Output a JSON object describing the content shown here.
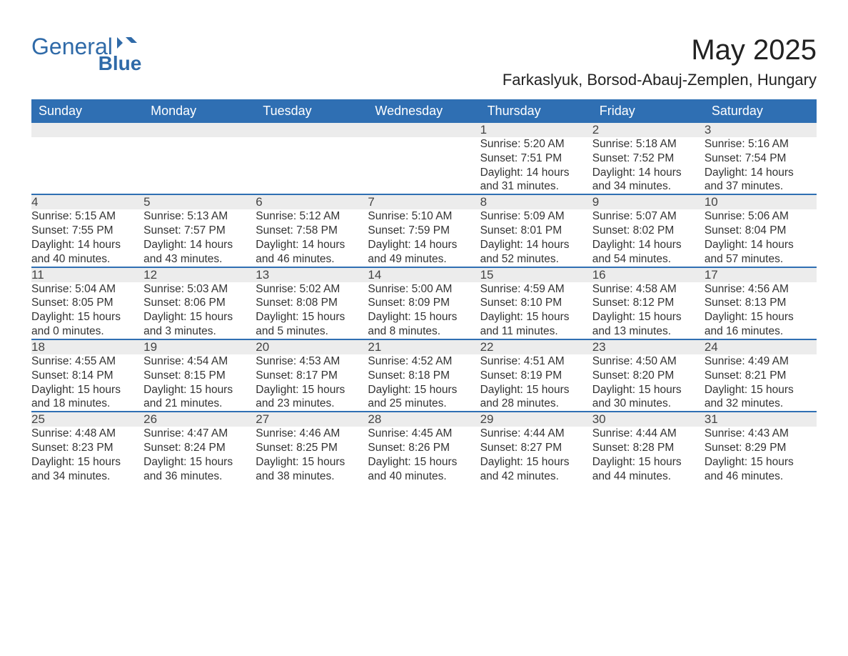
{
  "brand": {
    "word1": "General",
    "word2": "Blue"
  },
  "title": "May 2025",
  "subtitle": "Farkaslyuk, Borsod-Abauj-Zemplen, Hungary",
  "colors": {
    "header_bg": "#2f6fb3",
    "header_text": "#ffffff",
    "daynum_bg": "#ececec",
    "accent_line": "#2f6fb3",
    "body_text": "#333333",
    "brand": "#2f6aa8",
    "page_bg": "#ffffff"
  },
  "font_sizes": {
    "title": 40,
    "subtitle": 22,
    "header": 18,
    "daynum": 17,
    "detail": 15.5
  },
  "weekdays": [
    "Sunday",
    "Monday",
    "Tuesday",
    "Wednesday",
    "Thursday",
    "Friday",
    "Saturday"
  ],
  "weeks": [
    [
      null,
      null,
      null,
      null,
      {
        "n": "1",
        "sr": "5:20 AM",
        "ss": "7:51 PM",
        "dh": "14",
        "dm": "31"
      },
      {
        "n": "2",
        "sr": "5:18 AM",
        "ss": "7:52 PM",
        "dh": "14",
        "dm": "34"
      },
      {
        "n": "3",
        "sr": "5:16 AM",
        "ss": "7:54 PM",
        "dh": "14",
        "dm": "37"
      }
    ],
    [
      {
        "n": "4",
        "sr": "5:15 AM",
        "ss": "7:55 PM",
        "dh": "14",
        "dm": "40"
      },
      {
        "n": "5",
        "sr": "5:13 AM",
        "ss": "7:57 PM",
        "dh": "14",
        "dm": "43"
      },
      {
        "n": "6",
        "sr": "5:12 AM",
        "ss": "7:58 PM",
        "dh": "14",
        "dm": "46"
      },
      {
        "n": "7",
        "sr": "5:10 AM",
        "ss": "7:59 PM",
        "dh": "14",
        "dm": "49"
      },
      {
        "n": "8",
        "sr": "5:09 AM",
        "ss": "8:01 PM",
        "dh": "14",
        "dm": "52"
      },
      {
        "n": "9",
        "sr": "5:07 AM",
        "ss": "8:02 PM",
        "dh": "14",
        "dm": "54"
      },
      {
        "n": "10",
        "sr": "5:06 AM",
        "ss": "8:04 PM",
        "dh": "14",
        "dm": "57"
      }
    ],
    [
      {
        "n": "11",
        "sr": "5:04 AM",
        "ss": "8:05 PM",
        "dh": "15",
        "dm": "0"
      },
      {
        "n": "12",
        "sr": "5:03 AM",
        "ss": "8:06 PM",
        "dh": "15",
        "dm": "3"
      },
      {
        "n": "13",
        "sr": "5:02 AM",
        "ss": "8:08 PM",
        "dh": "15",
        "dm": "5"
      },
      {
        "n": "14",
        "sr": "5:00 AM",
        "ss": "8:09 PM",
        "dh": "15",
        "dm": "8"
      },
      {
        "n": "15",
        "sr": "4:59 AM",
        "ss": "8:10 PM",
        "dh": "15",
        "dm": "11"
      },
      {
        "n": "16",
        "sr": "4:58 AM",
        "ss": "8:12 PM",
        "dh": "15",
        "dm": "13"
      },
      {
        "n": "17",
        "sr": "4:56 AM",
        "ss": "8:13 PM",
        "dh": "15",
        "dm": "16"
      }
    ],
    [
      {
        "n": "18",
        "sr": "4:55 AM",
        "ss": "8:14 PM",
        "dh": "15",
        "dm": "18"
      },
      {
        "n": "19",
        "sr": "4:54 AM",
        "ss": "8:15 PM",
        "dh": "15",
        "dm": "21"
      },
      {
        "n": "20",
        "sr": "4:53 AM",
        "ss": "8:17 PM",
        "dh": "15",
        "dm": "23"
      },
      {
        "n": "21",
        "sr": "4:52 AM",
        "ss": "8:18 PM",
        "dh": "15",
        "dm": "25"
      },
      {
        "n": "22",
        "sr": "4:51 AM",
        "ss": "8:19 PM",
        "dh": "15",
        "dm": "28"
      },
      {
        "n": "23",
        "sr": "4:50 AM",
        "ss": "8:20 PM",
        "dh": "15",
        "dm": "30"
      },
      {
        "n": "24",
        "sr": "4:49 AM",
        "ss": "8:21 PM",
        "dh": "15",
        "dm": "32"
      }
    ],
    [
      {
        "n": "25",
        "sr": "4:48 AM",
        "ss": "8:23 PM",
        "dh": "15",
        "dm": "34"
      },
      {
        "n": "26",
        "sr": "4:47 AM",
        "ss": "8:24 PM",
        "dh": "15",
        "dm": "36"
      },
      {
        "n": "27",
        "sr": "4:46 AM",
        "ss": "8:25 PM",
        "dh": "15",
        "dm": "38"
      },
      {
        "n": "28",
        "sr": "4:45 AM",
        "ss": "8:26 PM",
        "dh": "15",
        "dm": "40"
      },
      {
        "n": "29",
        "sr": "4:44 AM",
        "ss": "8:27 PM",
        "dh": "15",
        "dm": "42"
      },
      {
        "n": "30",
        "sr": "4:44 AM",
        "ss": "8:28 PM",
        "dh": "15",
        "dm": "44"
      },
      {
        "n": "31",
        "sr": "4:43 AM",
        "ss": "8:29 PM",
        "dh": "15",
        "dm": "46"
      }
    ]
  ],
  "labels": {
    "sunrise": "Sunrise: ",
    "sunset": "Sunset: ",
    "daylight_a": "Daylight: ",
    "hours": " hours",
    "and": "and ",
    "minutes": " minutes."
  }
}
